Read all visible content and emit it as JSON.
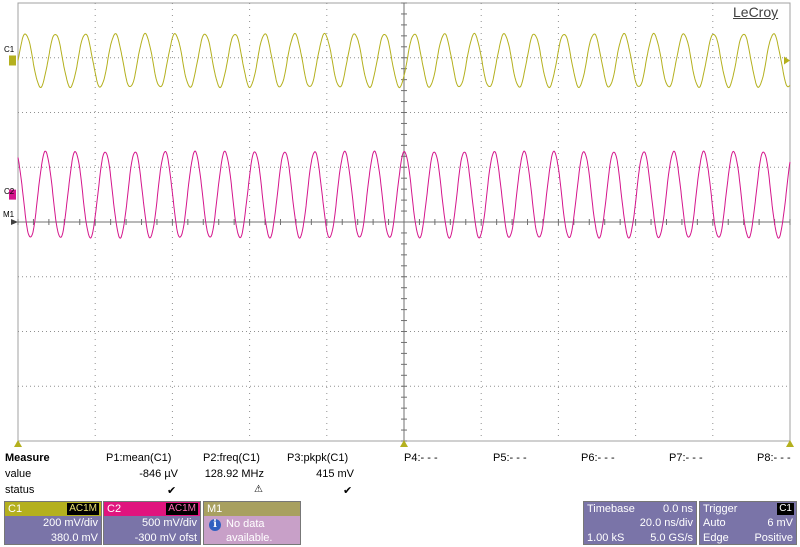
{
  "brand": "LeCroy",
  "colors": {
    "c1": "#b4b01e",
    "c2": "#d4168c",
    "m1": "#a8a060",
    "grid": "#909090"
  },
  "channel_labels": {
    "c1": "C1",
    "m1": "M1",
    "c2": "C2"
  },
  "measure": {
    "title": "Measure",
    "row_value": "value",
    "row_status": "status",
    "params": [
      {
        "name": "P1:mean(C1)",
        "value": "-846 µV",
        "status": "✔"
      },
      {
        "name": "P2:freq(C1)",
        "value": "128.92 MHz",
        "status": "⚠"
      },
      {
        "name": "P3:pkpk(C1)",
        "value": "415 mV",
        "status": "✔"
      },
      {
        "name": "P4:- - -",
        "value": "",
        "status": ""
      },
      {
        "name": "P5:- - -",
        "value": "",
        "status": ""
      },
      {
        "name": "P6:- - -",
        "value": "",
        "status": ""
      },
      {
        "name": "P7:- - -",
        "value": "",
        "status": ""
      },
      {
        "name": "P8:- - -",
        "value": "",
        "status": ""
      }
    ]
  },
  "c1_box": {
    "name": "C1",
    "coupling": "AC1M",
    "scale": "200 mV/div",
    "offset": "380.0 mV"
  },
  "c2_box": {
    "name": "C2",
    "coupling": "AC1M",
    "scale": "500 mV/div",
    "offset": "-300 mV ofst"
  },
  "m1_box": {
    "name": "M1",
    "line1": "No data",
    "line2": "available."
  },
  "timebase": {
    "title": "Timebase",
    "delay": "0.0 ns",
    "scale": "20.0 ns/div",
    "samples": "1.00 kS",
    "rate": "5.0 GS/s"
  },
  "trigger": {
    "title": "Trigger",
    "source": "C1",
    "mode": "Auto",
    "level": "6 mV",
    "type": "Edge",
    "slope": "Positive"
  },
  "waveforms": {
    "c1": {
      "cycles": 25.8,
      "center_div": 1.05,
      "amplitude_div": 0.97
    },
    "c2": {
      "cycles": 25.8,
      "center_div": 3.5,
      "amplitude_div": 1.57,
      "phase": 2.1
    }
  }
}
